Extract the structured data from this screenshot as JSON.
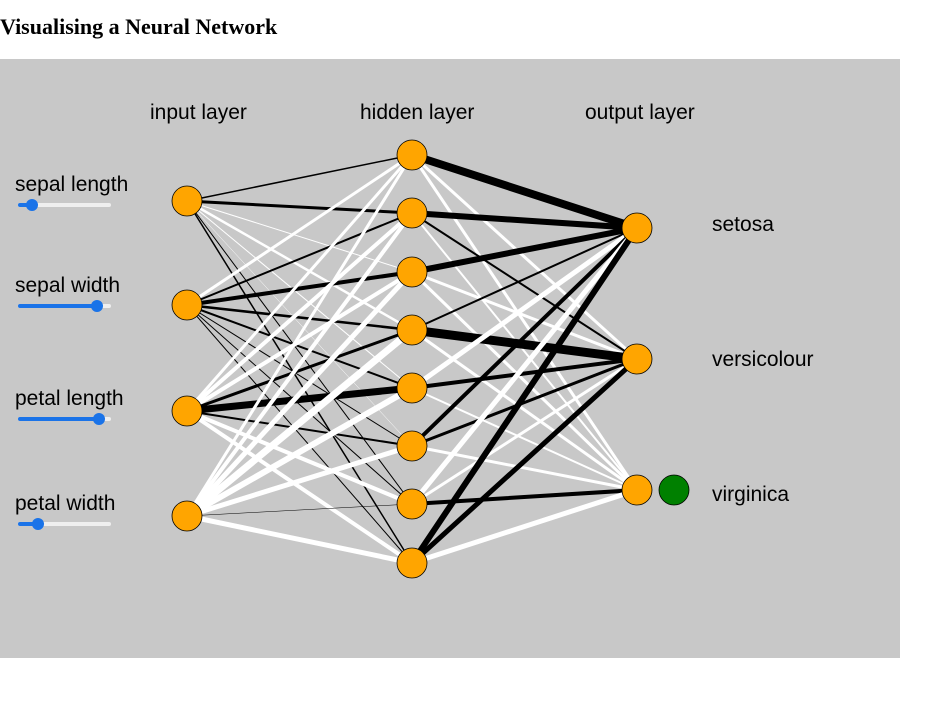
{
  "page": {
    "title": "Visualising a Neural Network"
  },
  "layers": {
    "input_label": "input layer",
    "hidden_label": "hidden layer",
    "output_label": "output layer"
  },
  "features": [
    {
      "label": "sepal length",
      "value": 0.15
    },
    {
      "label": "sepal width",
      "value": 0.85
    },
    {
      "label": "petal length",
      "value": 0.87
    },
    {
      "label": "petal width",
      "value": 0.22
    }
  ],
  "outputs": [
    {
      "label": "setosa"
    },
    {
      "label": "versicolour"
    },
    {
      "label": "virginica"
    }
  ],
  "prediction": {
    "class_index": 2,
    "indicator_color": "#008000"
  },
  "colors": {
    "node_fill": "#ffa500",
    "positive_weight": "#000000",
    "negative_weight": "#ffffff",
    "panel_bg": "#c8c8c8",
    "slider_accent": "#1a73e8"
  },
  "weights_input_hidden": [
    [
      1.5,
      3,
      -1,
      -2.5,
      -1,
      -0.5,
      1,
      1.5
    ],
    [
      -3,
      2,
      4,
      2.5,
      2,
      1,
      1,
      1
    ],
    [
      -3,
      -4,
      -4,
      3,
      7,
      2,
      -4,
      -4
    ],
    [
      -3,
      -4,
      -5,
      -7,
      -6,
      -5,
      0.3,
      -5
    ]
  ],
  "weights_hidden_output": [
    [
      8,
      -3,
      -3
    ],
    [
      6,
      2,
      -2
    ],
    [
      6,
      -3,
      -3
    ],
    [
      2,
      9,
      -3
    ],
    [
      -5,
      4,
      -2
    ],
    [
      4,
      3,
      -3
    ],
    [
      -5,
      -3,
      4
    ],
    [
      6,
      5,
      -5
    ]
  ]
}
